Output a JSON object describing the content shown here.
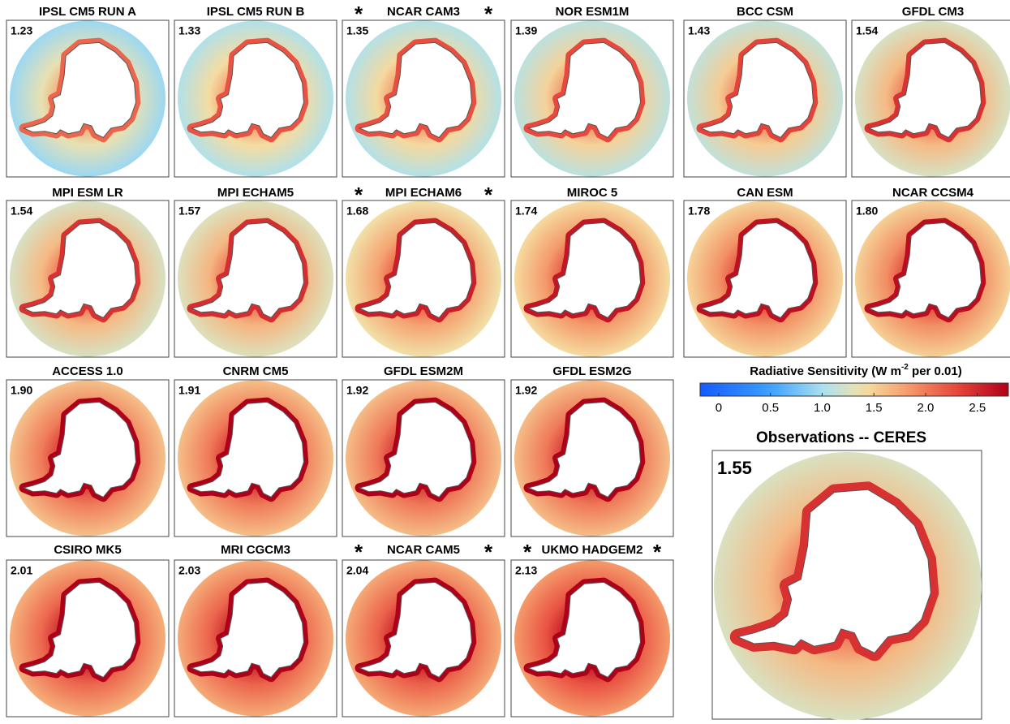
{
  "panels": [
    {
      "title": "IPSL CM5 RUN A",
      "value": 1.23
    },
    {
      "title": "IPSL CM5 RUN B",
      "value": 1.33
    },
    {
      "title": "NCAR CAM3",
      "value": 1.35,
      "asterisk": "*"
    },
    {
      "title": "NOR ESM1M",
      "value": 1.39
    },
    {
      "title": "BCC CSM",
      "value": 1.43
    },
    {
      "title": "GFDL CM3",
      "value": 1.54
    },
    {
      "title": "MPI ESM LR",
      "value": 1.54
    },
    {
      "title": "MPI ECHAM5",
      "value": 1.57
    },
    {
      "title": "MPI ECHAM6",
      "value": 1.68,
      "asterisk": "*"
    },
    {
      "title": "MIROC 5",
      "value": 1.74
    },
    {
      "title": "CAN ESM",
      "value": 1.78
    },
    {
      "title": "NCAR CCSM4",
      "value": {
        "value": 1.8,
        "label": "1.80"
      }
    },
    {
      "title": "ACCESS 1.0",
      "value": {
        "value": 1.9,
        "label": "1.90"
      }
    },
    {
      "title": "CNRM CM5",
      "value": 1.91
    },
    {
      "title": "GFDL ESM2M",
      "value": 1.92
    },
    {
      "title": "GFDL ESM2G",
      "value": 1.92
    },
    {
      "title": "CSIRO MK5",
      "value": 2.01
    },
    {
      "title": "MRI CGCM3",
      "value": 2.03
    },
    {
      "title": "NCAR CAM5",
      "value": 2.04,
      "asterisk": "*"
    },
    {
      "title": "UKMO HADGEM2",
      "value": 2.13,
      "asterisk": "*"
    }
  ],
  "colorbar": {
    "title": [
      "Radiative Sensitivity (W m",
      "-2",
      " per 0.01)"
    ],
    "range": [
      -0.18,
      2.8
    ],
    "ticks": [
      0,
      0.5,
      {
        "value": 1,
        "label": "1.0"
      },
      1.5,
      {
        "value": 2,
        "label": "2.0"
      },
      2.5
    ]
  },
  "observations": {
    "title": "Observations -- CERES",
    "value": 1.55
  }
}
